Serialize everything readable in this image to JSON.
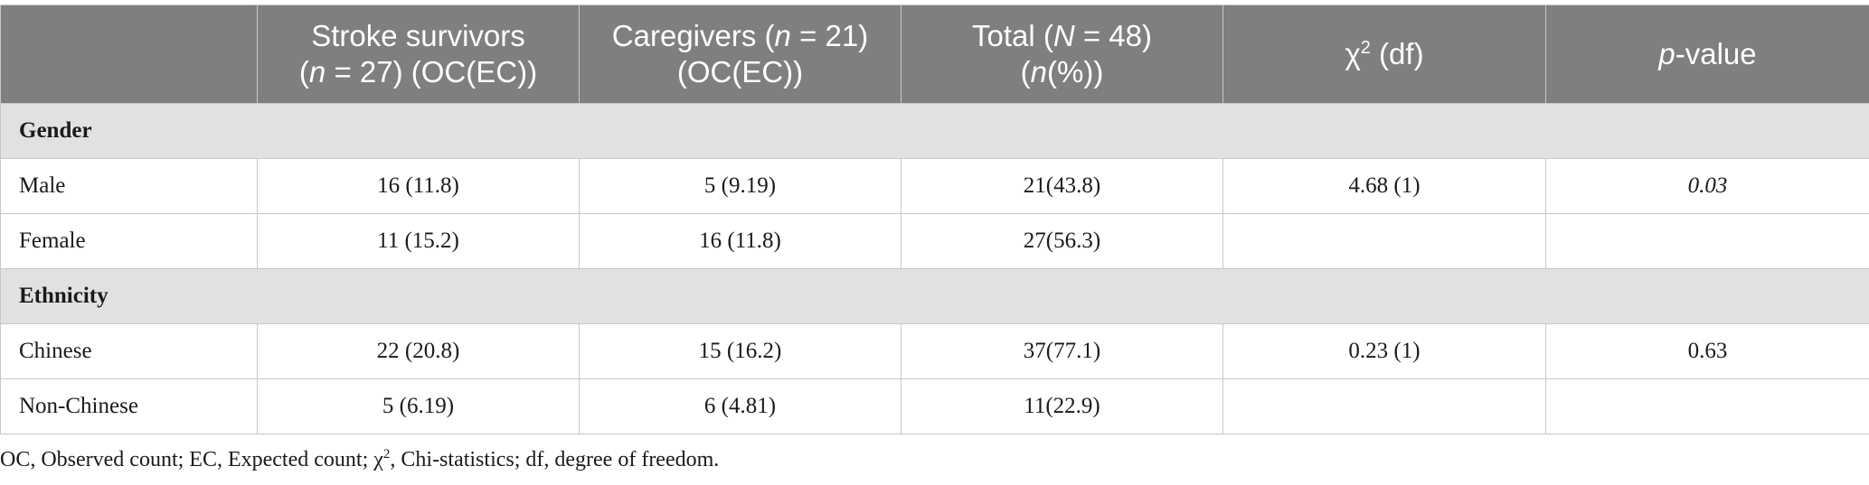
{
  "table": {
    "headers": {
      "col1": "",
      "col2_line1": "Stroke survivors",
      "col2_n": "n",
      "col2_line2_rest": " = 27) (OC(EC))",
      "col3_line1_prefix": "Caregivers (",
      "col3_n": "n",
      "col3_line1_rest": " = 21)",
      "col3_line2": "(OC(EC))",
      "col4_line1_prefix": "Total (",
      "col4_n": "N",
      "col4_line1_rest": " = 48)",
      "col4_line2_prefix": "(",
      "col4_line2_n": "n",
      "col4_line2_rest": "(%))",
      "col5_chi": "χ",
      "col5_sup": "2",
      "col5_rest": " (df)",
      "col6_p": "p",
      "col6_rest": "-value"
    },
    "sections": [
      {
        "title": "Gender",
        "rows": [
          {
            "label": "Male",
            "survivors": "16 (11.8)",
            "caregivers": "5 (9.19)",
            "total": "21(43.8)",
            "chi": "4.68 (1)",
            "p": "0.03"
          },
          {
            "label": "Female",
            "survivors": "11 (15.2)",
            "caregivers": "16 (11.8)",
            "total": "27(56.3)",
            "chi": "",
            "p": ""
          }
        ]
      },
      {
        "title": "Ethnicity",
        "rows": [
          {
            "label": "Chinese",
            "survivors": "22 (20.8)",
            "caregivers": "15 (16.2)",
            "total": "37(77.1)",
            "chi": "0.23 (1)",
            "p": "0.63"
          },
          {
            "label": "Non-Chinese",
            "survivors": "5 (6.19)",
            "caregivers": "6 (4.81)",
            "total": "11(22.9)",
            "chi": "",
            "p": ""
          }
        ]
      }
    ]
  },
  "footnote": {
    "part1": "OC, Observed count; EC, Expected count; χ",
    "sup": "2",
    "part2": ", Chi-statistics; df, degree of freedom."
  }
}
